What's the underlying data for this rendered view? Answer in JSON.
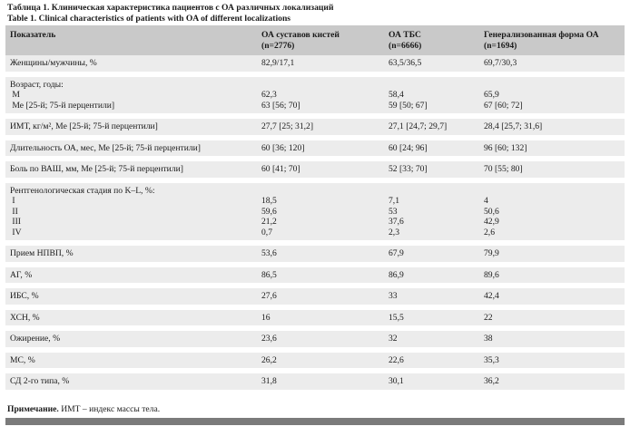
{
  "caption": {
    "ru": "Таблица 1. Клиническая характеристика пациентов с ОА различных локализаций",
    "en": "Table 1. Clinical characteristics of patients with OA of different localizations"
  },
  "header": {
    "col1": "Показатель",
    "col2": [
      "ОА суставов кистей",
      "(n=2776)"
    ],
    "col3": [
      "ОА ТБС",
      "(n=6666)"
    ],
    "col4": [
      "Генерализованная форма ОА",
      "(n=1694)"
    ]
  },
  "rows": [
    {
      "label": [
        "Женщины/мужчины, %"
      ],
      "v1": [
        "82,9/17,1"
      ],
      "v2": [
        "63,5/36,5"
      ],
      "v3": [
        "69,7/30,3"
      ]
    },
    {
      "label": [
        "Возраст, годы:",
        " М",
        " Ме [25-й; 75-й перцентили]"
      ],
      "v1": [
        "",
        "62,3",
        "63 [56; 70]"
      ],
      "v2": [
        "",
        "58,4",
        "59 [50; 67]"
      ],
      "v3": [
        "",
        "65,9",
        "67 [60; 72]"
      ]
    },
    {
      "label": [
        "ИМТ, кг/м², Ме [25-й; 75-й перцентили]"
      ],
      "v1": [
        "27,7 [25; 31,2]"
      ],
      "v2": [
        "27,1 [24,7; 29,7]"
      ],
      "v3": [
        "28,4 [25,7; 31,6]"
      ]
    },
    {
      "label": [
        "Длительность ОА, мес, Ме [25-й; 75-й перцентили]"
      ],
      "v1": [
        "60 [36; 120]"
      ],
      "v2": [
        "60 [24; 96]"
      ],
      "v3": [
        "96 [60; 132]"
      ]
    },
    {
      "label": [
        "Боль по ВАШ, мм, Ме [25-й; 75-й перцентили]"
      ],
      "v1": [
        "60 [41; 70]"
      ],
      "v2": [
        "52 [33; 70]"
      ],
      "v3": [
        "70 [55; 80]"
      ]
    },
    {
      "label": [
        "Рентгенологическая стадия по K–L, %:",
        " I",
        " II",
        " III",
        " IV"
      ],
      "v1": [
        "",
        "18,5",
        "59,6",
        "21,2",
        "0,7"
      ],
      "v2": [
        "",
        "7,1",
        "53",
        "37,6",
        "2,3"
      ],
      "v3": [
        "",
        "4",
        "50,6",
        "42,9",
        "2,6"
      ]
    },
    {
      "label": [
        "Прием НПВП, %"
      ],
      "v1": [
        "53,6"
      ],
      "v2": [
        "67,9"
      ],
      "v3": [
        "79,9"
      ]
    },
    {
      "label": [
        "АГ, %"
      ],
      "v1": [
        "86,5"
      ],
      "v2": [
        "86,9"
      ],
      "v3": [
        "89,6"
      ]
    },
    {
      "label": [
        "ИБС, %"
      ],
      "v1": [
        "27,6"
      ],
      "v2": [
        "33"
      ],
      "v3": [
        "42,4"
      ]
    },
    {
      "label": [
        "ХСН, %"
      ],
      "v1": [
        "16"
      ],
      "v2": [
        "15,5"
      ],
      "v3": [
        "22"
      ]
    },
    {
      "label": [
        "Ожирение, %"
      ],
      "v1": [
        "23,6"
      ],
      "v2": [
        "32"
      ],
      "v3": [
        "38"
      ]
    },
    {
      "label": [
        "МС, %"
      ],
      "v1": [
        "26,2"
      ],
      "v2": [
        "22,6"
      ],
      "v3": [
        "35,3"
      ]
    },
    {
      "label": [
        "СД 2-го типа, %"
      ],
      "v1": [
        "31,8"
      ],
      "v2": [
        "30,1"
      ],
      "v3": [
        "36,2"
      ]
    }
  ],
  "note": {
    "label": "Примечание.",
    "text": " ИМТ – индекс массы тела."
  }
}
